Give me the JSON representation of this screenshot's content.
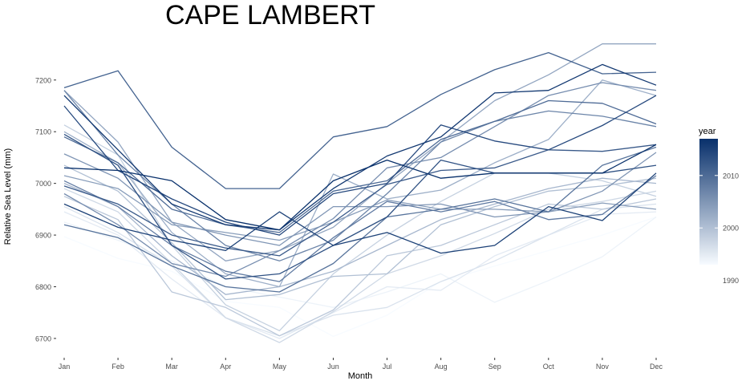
{
  "chart_data": {
    "type": "line",
    "title": "CAPE LAMBERT",
    "xlabel": "Month",
    "ylabel": "Relative Sea Level (mm)",
    "categories": [
      "Jan",
      "Feb",
      "Mar",
      "Apr",
      "May",
      "Jun",
      "Jul",
      "Aug",
      "Sep",
      "Oct",
      "Nov",
      "Dec"
    ],
    "ylim": [
      6672,
      7285
    ],
    "yticks": [
      6700,
      6800,
      6900,
      7000,
      7100,
      7200
    ],
    "grid": false,
    "legend": {
      "title": "year",
      "position": "right",
      "range": [
        1993,
        2017
      ],
      "ticks": [
        1990,
        2000,
        2010
      ],
      "color_low": "#f7fbff",
      "color_high": "#08306b"
    },
    "series": [
      {
        "name": "1993",
        "values": [
          6897,
          6855,
          6830,
          6772,
          6760,
          6704,
          6745,
          6810,
          6840,
          6870,
          6900,
          6935
        ]
      },
      {
        "name": "1994",
        "values": [
          6925,
          6890,
          6850,
          6800,
          6780,
          6760,
          6790,
          6825,
          6770,
          6812,
          6858,
          6935
        ]
      },
      {
        "name": "1995",
        "values": [
          6945,
          6900,
          6815,
          6740,
          6700,
          6750,
          6800,
          6793,
          6860,
          6900,
          6940,
          6945
        ]
      },
      {
        "name": "1996",
        "values": [
          6955,
          6905,
          6840,
          6740,
          6705,
          6745,
          6760,
          6810,
          6850,
          6900,
          6950,
          6960
        ]
      },
      {
        "name": "1997",
        "values": [
          6990,
          6945,
          6845,
          6740,
          6692,
          6752,
          6825,
          6860,
          6903,
          6950,
          6965,
          6985
        ]
      },
      {
        "name": "1998",
        "values": [
          7113,
          7055,
          6880,
          6765,
          6715,
          6825,
          6900,
          6965,
          7020,
          7020,
          7005,
          6975
        ]
      },
      {
        "name": "1999",
        "values": [
          6975,
          6930,
          6790,
          6760,
          6705,
          6755,
          6860,
          6880,
          6920,
          6960,
          6950,
          6970
        ]
      },
      {
        "name": "2000",
        "values": [
          7035,
          6985,
          6885,
          6775,
          6785,
          6820,
          6825,
          6920,
          6955,
          6985,
          6995,
          7010
        ]
      },
      {
        "name": "2001",
        "values": [
          7000,
          6955,
          6860,
          6785,
          6800,
          6830,
          6880,
          6930,
          6960,
          6990,
          7010,
          7000
        ]
      },
      {
        "name": "2002",
        "values": [
          7100,
          7040,
          6905,
          6825,
          6800,
          7018,
          6970,
          6987,
          7040,
          7085,
          7200,
          7170
        ]
      },
      {
        "name": "2003",
        "values": [
          7180,
          7080,
          6925,
          6850,
          6870,
          6915,
          7000,
          7080,
          7160,
          7210,
          7270,
          7270
        ]
      },
      {
        "name": "2004",
        "values": [
          7015,
          6990,
          6920,
          6905,
          6890,
          6925,
          6968,
          6950,
          6950,
          6945,
          6962,
          6950
        ]
      },
      {
        "name": "2005",
        "values": [
          7057,
          7010,
          6925,
          6900,
          6880,
          6955,
          6955,
          6960,
          6935,
          6945,
          6985,
          7060
        ]
      },
      {
        "name": "2006",
        "values": [
          6980,
          6920,
          6845,
          6820,
          6870,
          6932,
          7030,
          7050,
          7110,
          7170,
          7195,
          7180
        ]
      },
      {
        "name": "2007",
        "values": [
          7180,
          7055,
          6960,
          6880,
          6850,
          6890,
          6980,
          7080,
          7120,
          7140,
          7130,
          7110
        ]
      },
      {
        "name": "2008",
        "values": [
          7005,
          6955,
          6880,
          6830,
          6810,
          6895,
          6965,
          6945,
          6965,
          6930,
          6940,
          7015
        ]
      },
      {
        "name": "2009",
        "values": [
          6920,
          6895,
          6840,
          6800,
          6790,
          6845,
          6935,
          6950,
          6970,
          6945,
          7035,
          7070
        ]
      },
      {
        "name": "2010",
        "values": [
          7090,
          7040,
          6950,
          6920,
          6905,
          6985,
          7005,
          7085,
          7120,
          7160,
          7155,
          7115
        ]
      },
      {
        "name": "2011",
        "values": [
          7185,
          7218,
          7070,
          6990,
          6990,
          7090,
          7110,
          7172,
          7220,
          7253,
          7212,
          7215
        ]
      },
      {
        "name": "2012",
        "values": [
          6995,
          6960,
          6900,
          6875,
          6860,
          6925,
          6998,
          7025,
          7030,
          7065,
          7062,
          7075
        ]
      },
      {
        "name": "2013",
        "values": [
          7095,
          7035,
          6880,
          6815,
          6825,
          6880,
          6935,
          7045,
          7020,
          7020,
          7020,
          7035
        ]
      },
      {
        "name": "2014",
        "values": [
          7150,
          7025,
          6970,
          6925,
          6900,
          6980,
          7000,
          7113,
          7082,
          7065,
          7112,
          7170
        ]
      },
      {
        "name": "2015",
        "values": [
          6960,
          6915,
          6890,
          6870,
          6945,
          6880,
          6905,
          6865,
          6880,
          6955,
          6928,
          7020
        ]
      },
      {
        "name": "2016",
        "values": [
          7170,
          7065,
          6960,
          6920,
          6910,
          6990,
          7053,
          7090,
          7175,
          7180,
          7230,
          7190
        ]
      },
      {
        "name": "2017",
        "values": [
          7030,
          7025,
          7005,
          6930,
          6910,
          7005,
          7045,
          7010,
          7020,
          7020,
          7020,
          7075
        ]
      }
    ]
  }
}
